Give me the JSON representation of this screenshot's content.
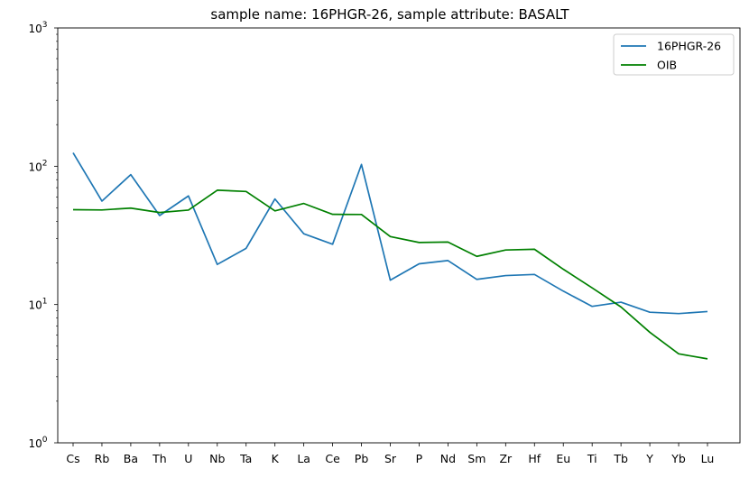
{
  "chart_data": {
    "type": "line",
    "title": "sample name: 16PHGR-26, sample attribute: BASALT",
    "xlabel": "",
    "ylabel": "",
    "yscale": "log",
    "ylim": [
      1,
      1000
    ],
    "grid": false,
    "legend_position": "top-right",
    "categories": [
      "Cs",
      "Rb",
      "Ba",
      "Th",
      "U",
      "Nb",
      "Ta",
      "K",
      "La",
      "Ce",
      "Pb",
      "Sr",
      "P",
      "Nd",
      "Sm",
      "Zr",
      "Hf",
      "Eu",
      "Ti",
      "Tb",
      "Y",
      "Yb",
      "Lu"
    ],
    "y_ticks": [
      {
        "value": 1,
        "label": "10^0"
      },
      {
        "value": 10,
        "label": "10^1"
      },
      {
        "value": 100,
        "label": "10^2"
      },
      {
        "value": 1000,
        "label": "10^3"
      }
    ],
    "series": [
      {
        "name": "16PHGR-26",
        "color": "#1f77b4",
        "values": [
          125,
          56,
          87,
          44,
          61,
          19.5,
          25.5,
          58,
          32.5,
          27.3,
          103,
          15,
          19.7,
          20.8,
          15.2,
          16.2,
          16.5,
          12.5,
          9.7,
          10.4,
          8.8,
          8.6,
          8.9
        ]
      },
      {
        "name": "OIB",
        "color": "#008000",
        "values": [
          48.5,
          48.3,
          49.8,
          46.3,
          48.2,
          67.1,
          65.7,
          47.6,
          53.8,
          44.9,
          44.8,
          31.0,
          28.1,
          28.3,
          22.3,
          24.8,
          25.1,
          18.0,
          13.2,
          9.6,
          6.3,
          4.4,
          4.05
        ]
      }
    ]
  }
}
